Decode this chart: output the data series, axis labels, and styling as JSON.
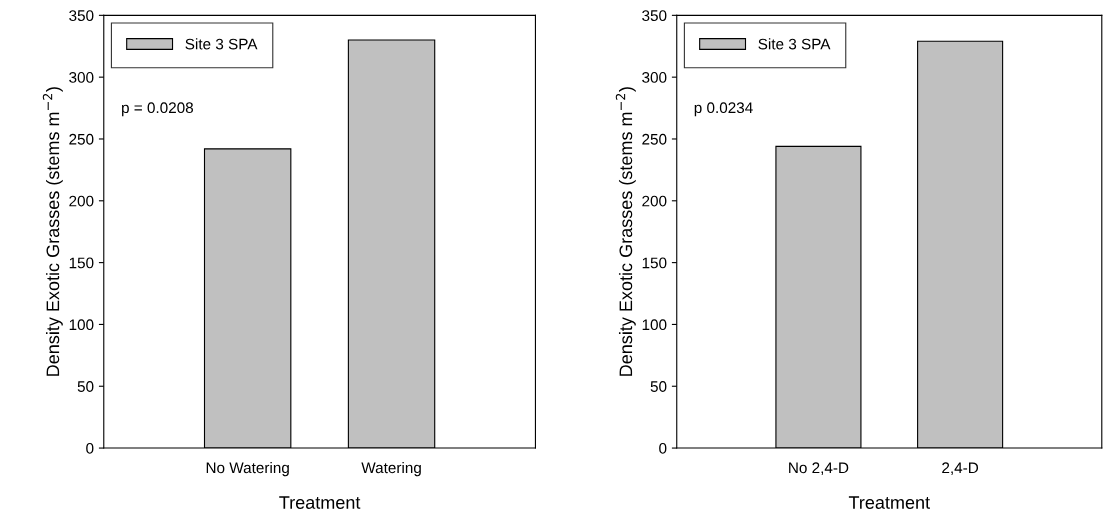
{
  "chart_data": [
    {
      "type": "bar",
      "xlabel": "Treatment",
      "ylabel": "Density Exotic Grasses (stems m$^{−2}$)",
      "categories": [
        "No Watering",
        "Watering"
      ],
      "series": [
        {
          "name": "Site 3 SPA",
          "color": "#c0c0c0",
          "values": [
            242,
            330
          ]
        }
      ],
      "ylim": [
        0,
        350
      ],
      "yticks": [
        0,
        50,
        100,
        150,
        200,
        250,
        300,
        350
      ],
      "legend": "top left",
      "grid": false,
      "annotations": [
        "p = 0.0208"
      ]
    },
    {
      "type": "bar",
      "xlabel": "Treatment",
      "ylabel": "Density Exotic Grasses (stems m$^{−2}$)",
      "categories": [
        "No 2,4-D",
        "2,4-D"
      ],
      "series": [
        {
          "name": "Site 3 SPA",
          "color": "#c0c0c0",
          "values": [
            244,
            329
          ]
        }
      ],
      "ylim": [
        0,
        350
      ],
      "yticks": [
        0,
        50,
        100,
        150,
        200,
        250,
        300,
        350
      ],
      "legend": "top left",
      "grid": false,
      "annotations": [
        "p 0.0234"
      ]
    }
  ]
}
